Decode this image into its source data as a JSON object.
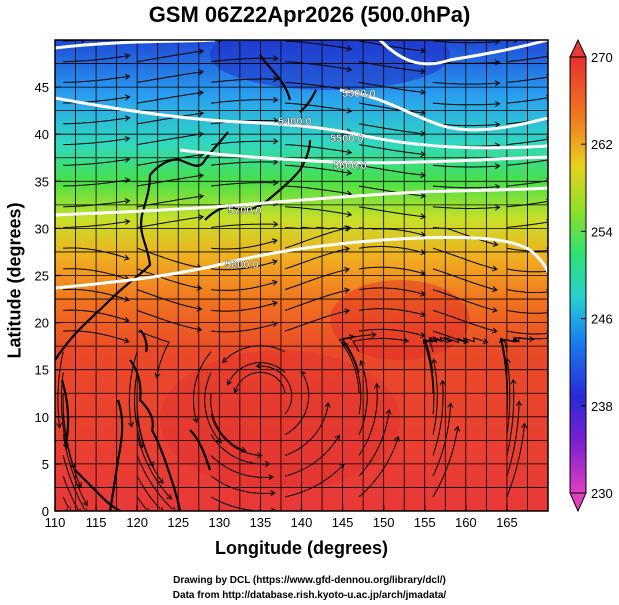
{
  "title": "GSM 06Z22Apr2026 (500.0hPa)",
  "x_axis": {
    "label": "Longitude (degrees)",
    "ticks": [
      "110",
      "115",
      "120",
      "125",
      "130",
      "135",
      "140",
      "145",
      "150",
      "155",
      "160",
      "165"
    ],
    "range": [
      110,
      170
    ]
  },
  "y_axis": {
    "label": "Latitude  (degrees)",
    "ticks": [
      "0",
      "5",
      "10",
      "15",
      "20",
      "25",
      "30",
      "35",
      "40",
      "45"
    ],
    "range": [
      0,
      50
    ]
  },
  "colorbar": {
    "ticks": [
      "230",
      "238",
      "246",
      "254",
      "262",
      "270"
    ],
    "range": [
      230,
      270
    ],
    "colors": [
      "#e040c0",
      "#3a1fd0",
      "#2090ff",
      "#28d8c8",
      "#40e040",
      "#d8e020",
      "#f0a020",
      "#f06020",
      "#e03030"
    ]
  },
  "contours": [
    {
      "label": "5300.0"
    },
    {
      "label": "5400.0"
    },
    {
      "label": "5500.0"
    },
    {
      "label": "5600.0"
    },
    {
      "label": "5700.0"
    },
    {
      "label": "5800.0"
    }
  ],
  "credits": {
    "line1": "Drawing by DCL (https://www.gfd-dennou.org/library/dcl/)",
    "line2": "Data from http://database.rish.kyoto-u.ac.jp/arch/jmadata/"
  }
}
